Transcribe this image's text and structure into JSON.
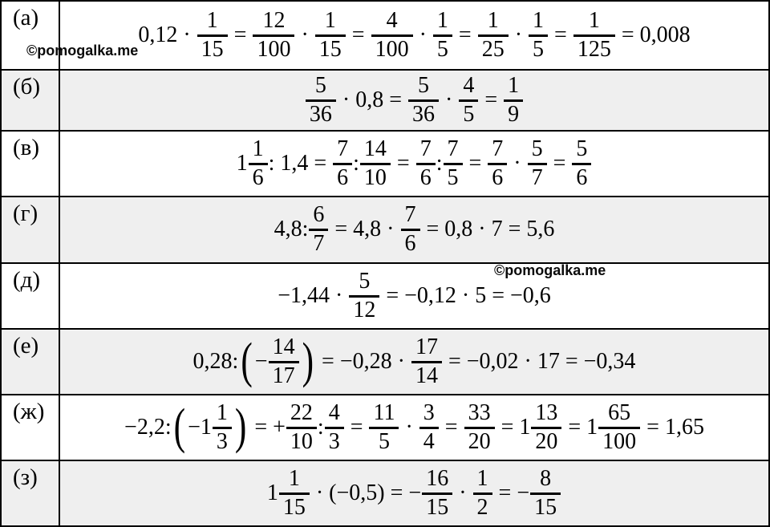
{
  "colors": {
    "background": "#ffffff",
    "row_shade": "#efefef",
    "border": "#000000",
    "text": "#000000"
  },
  "watermarks": [
    {
      "text": "©pomogalka.me"
    },
    {
      "text": "©pomogalka.me"
    }
  ],
  "table": {
    "rows": [
      {
        "label": "(а)",
        "tokens": [
          {
            "t": "txt",
            "v": "0,12 · "
          },
          {
            "t": "frac",
            "n": "1",
            "d": "15"
          },
          {
            "t": "txt",
            "v": " = "
          },
          {
            "t": "frac",
            "n": "12",
            "d": "100"
          },
          {
            "t": "txt",
            "v": " · "
          },
          {
            "t": "frac",
            "n": "1",
            "d": "15"
          },
          {
            "t": "txt",
            "v": " = "
          },
          {
            "t": "frac",
            "n": "4",
            "d": "100"
          },
          {
            "t": "txt",
            "v": " · "
          },
          {
            "t": "frac",
            "n": "1",
            "d": "5"
          },
          {
            "t": "txt",
            "v": " = "
          },
          {
            "t": "frac",
            "n": "1",
            "d": "25"
          },
          {
            "t": "txt",
            "v": " · "
          },
          {
            "t": "frac",
            "n": "1",
            "d": "5"
          },
          {
            "t": "txt",
            "v": " = "
          },
          {
            "t": "frac",
            "n": "1",
            "d": "125"
          },
          {
            "t": "txt",
            "v": " = 0,008"
          }
        ]
      },
      {
        "label": "(б)",
        "tokens": [
          {
            "t": "frac",
            "n": "5",
            "d": "36"
          },
          {
            "t": "txt",
            "v": " · 0,8 = "
          },
          {
            "t": "frac",
            "n": "5",
            "d": "36"
          },
          {
            "t": "txt",
            "v": " · "
          },
          {
            "t": "frac",
            "n": "4",
            "d": "5"
          },
          {
            "t": "txt",
            "v": " = "
          },
          {
            "t": "frac",
            "n": "1",
            "d": "9"
          }
        ]
      },
      {
        "label": "(в)",
        "tokens": [
          {
            "t": "txt",
            "v": "1"
          },
          {
            "t": "frac",
            "n": "1",
            "d": "6"
          },
          {
            "t": "txt",
            "v": ": 1,4 = "
          },
          {
            "t": "frac",
            "n": "7",
            "d": "6"
          },
          {
            "t": "txt",
            "v": ":"
          },
          {
            "t": "frac",
            "n": "14",
            "d": "10"
          },
          {
            "t": "txt",
            "v": " = "
          },
          {
            "t": "frac",
            "n": "7",
            "d": "6"
          },
          {
            "t": "txt",
            "v": ":"
          },
          {
            "t": "frac",
            "n": "7",
            "d": "5"
          },
          {
            "t": "txt",
            "v": " = "
          },
          {
            "t": "frac",
            "n": "7",
            "d": "6"
          },
          {
            "t": "txt",
            "v": " · "
          },
          {
            "t": "frac",
            "n": "5",
            "d": "7"
          },
          {
            "t": "txt",
            "v": " = "
          },
          {
            "t": "frac",
            "n": "5",
            "d": "6"
          }
        ]
      },
      {
        "label": "(г)",
        "tokens": [
          {
            "t": "txt",
            "v": "4,8:"
          },
          {
            "t": "frac",
            "n": "6",
            "d": "7"
          },
          {
            "t": "txt",
            "v": " = 4,8 · "
          },
          {
            "t": "frac",
            "n": "7",
            "d": "6"
          },
          {
            "t": "txt",
            "v": " = 0,8 · 7 = 5,6"
          }
        ]
      },
      {
        "label": "(д)",
        "tokens": [
          {
            "t": "txt",
            "v": "−1,44 · "
          },
          {
            "t": "frac",
            "n": "5",
            "d": "12"
          },
          {
            "t": "txt",
            "v": " = −0,12 · 5 = −0,6"
          }
        ]
      },
      {
        "label": "(е)",
        "tokens": [
          {
            "t": "txt",
            "v": "0,28:"
          },
          {
            "t": "par",
            "v": "("
          },
          {
            "t": "txt",
            "v": "−"
          },
          {
            "t": "frac",
            "n": "14",
            "d": "17"
          },
          {
            "t": "par",
            "v": ")"
          },
          {
            "t": "txt",
            "v": " = −0,28 · "
          },
          {
            "t": "frac",
            "n": "17",
            "d": "14"
          },
          {
            "t": "txt",
            "v": " = −0,02 · 17 = −0,34"
          }
        ]
      },
      {
        "label": "(ж)",
        "tokens": [
          {
            "t": "txt",
            "v": "−2,2:"
          },
          {
            "t": "par",
            "v": "("
          },
          {
            "t": "txt",
            "v": "−1"
          },
          {
            "t": "frac",
            "n": "1",
            "d": "3"
          },
          {
            "t": "par",
            "v": ")"
          },
          {
            "t": "txt",
            "v": " = +"
          },
          {
            "t": "frac",
            "n": "22",
            "d": "10"
          },
          {
            "t": "txt",
            "v": ":"
          },
          {
            "t": "frac",
            "n": "4",
            "d": "3"
          },
          {
            "t": "txt",
            "v": " = "
          },
          {
            "t": "frac",
            "n": "11",
            "d": "5"
          },
          {
            "t": "txt",
            "v": " · "
          },
          {
            "t": "frac",
            "n": "3",
            "d": "4"
          },
          {
            "t": "txt",
            "v": " = "
          },
          {
            "t": "frac",
            "n": "33",
            "d": "20"
          },
          {
            "t": "txt",
            "v": " = 1"
          },
          {
            "t": "frac",
            "n": "13",
            "d": "20"
          },
          {
            "t": "txt",
            "v": " = 1"
          },
          {
            "t": "frac",
            "n": "65",
            "d": "100"
          },
          {
            "t": "txt",
            "v": " = 1,65"
          }
        ]
      },
      {
        "label": "(з)",
        "tokens": [
          {
            "t": "txt",
            "v": "1"
          },
          {
            "t": "frac",
            "n": "1",
            "d": "15"
          },
          {
            "t": "txt",
            "v": " · (−0,5) = −"
          },
          {
            "t": "frac",
            "n": "16",
            "d": "15"
          },
          {
            "t": "txt",
            "v": " · "
          },
          {
            "t": "frac",
            "n": "1",
            "d": "2"
          },
          {
            "t": "txt",
            "v": " = −"
          },
          {
            "t": "frac",
            "n": "8",
            "d": "15"
          }
        ]
      }
    ]
  }
}
